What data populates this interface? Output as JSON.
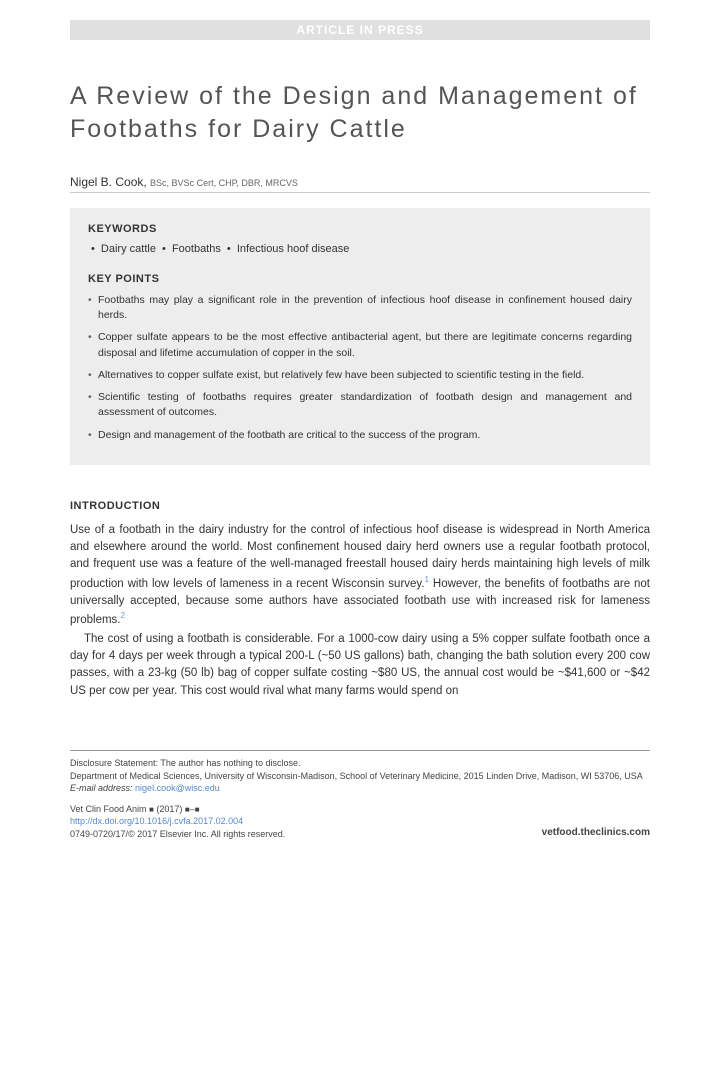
{
  "banner": "ARTICLE IN PRESS",
  "title": "A Review of the Design and Management of Footbaths for Dairy Cattle",
  "author": {
    "name": "Nigel B. Cook,",
    "credentials": "BSc, BVSc Cert, CHP, DBR, MRCVS"
  },
  "keywords": {
    "label": "KEYWORDS",
    "items": [
      "Dairy cattle",
      "Footbaths",
      "Infectious hoof disease"
    ]
  },
  "keypoints": {
    "label": "KEY POINTS",
    "items": [
      "Footbaths may play a significant role in the prevention of infectious hoof disease in confinement housed dairy herds.",
      "Copper sulfate appears to be the most effective antibacterial agent, but there are legitimate concerns regarding disposal and lifetime accumulation of copper in the soil.",
      "Alternatives to copper sulfate exist, but relatively few have been subjected to scientific testing in the field.",
      "Scientific testing of footbaths requires greater standardization of footbath design and management and assessment of outcomes.",
      "Design and management of the footbath are critical to the success of the program."
    ]
  },
  "intro": {
    "label": "INTRODUCTION",
    "para1_a": "Use of a footbath in the dairy industry for the control of infectious hoof disease is widespread in North America and elsewhere around the world. Most confinement housed dairy herd owners use a regular footbath protocol, and frequent use was a feature of the well-managed freestall housed dairy herds maintaining high levels of milk production with low levels of lameness in a recent Wisconsin survey.",
    "para1_b": " However, the benefits of footbaths are not universally accepted, because some authors have associated footbath use with increased risk for lameness problems.",
    "para2": "The cost of using a footbath is considerable. For a 1000-cow dairy using a 5% copper sulfate footbath once a day for 4 days per week through a typical 200-L (~50 US gallons) bath, changing the bath solution every 200 cow passes, with a 23-kg (50 lb) bag of copper sulfate costing ~$80 US, the annual cost would be ~$41,600 or ~$42 US per cow per year. This cost would rival what many farms would spend on"
  },
  "footer": {
    "disclosure": "Disclosure Statement: The author has nothing to disclose.",
    "affiliation": "Department of Medical Sciences, University of Wisconsin-Madison, School of Veterinary Medicine, 2015 Linden Drive, Madison, WI 53706, USA",
    "email_label": "E-mail address:",
    "email": "nigel.cook@wisc.edu",
    "journal": "Vet Clin Food Anim ",
    "issue": " (2017) ",
    "doi": "http://dx.doi.org/10.1016/j.cvfa.2017.02.004",
    "issn": "0749-0720/17/© 2017 Elsevier Inc. All rights reserved.",
    "site": "vetfood.theclinics.com"
  }
}
